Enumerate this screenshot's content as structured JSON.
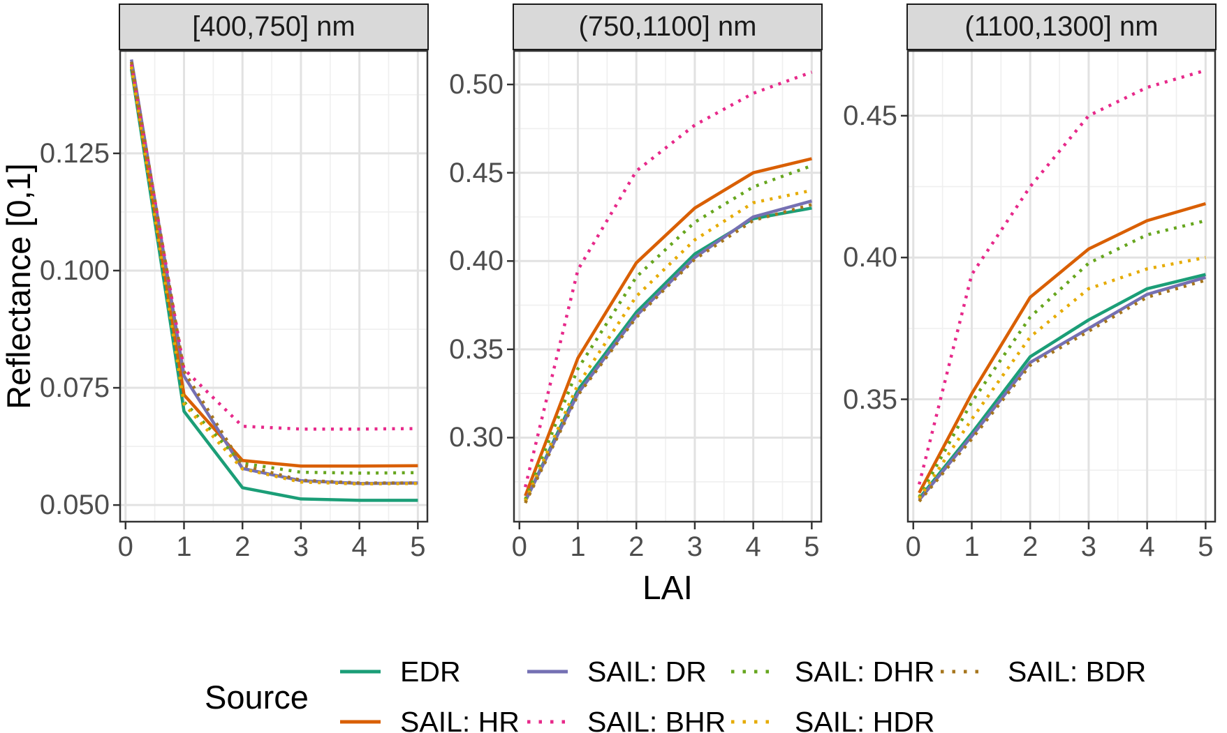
{
  "figure": {
    "x_axis_title": "LAI",
    "y_axis_title": "Reflectance [0,1]",
    "colors": {
      "strip_bg": "#d9d9d9",
      "panel_bg": "#ffffff",
      "panel_border": "#333333",
      "grid_major": "#e2e2e2",
      "grid_minor": "#efefef",
      "tick_mark": "#333333",
      "tick_label": "#4d4d4d",
      "text": "#000000"
    }
  },
  "legend": {
    "title": "Source",
    "entries": [
      {
        "label": "EDR",
        "color": "#1B9E77",
        "style": "solid"
      },
      {
        "label": "SAIL: HR",
        "color": "#D95F02",
        "style": "solid"
      },
      {
        "label": "SAIL: DR",
        "color": "#7570B3",
        "style": "solid"
      },
      {
        "label": "SAIL: BHR",
        "color": "#E7298A",
        "style": "dotted"
      },
      {
        "label": "SAIL: DHR",
        "color": "#66A61E",
        "style": "dotted"
      },
      {
        "label": "SAIL: HDR",
        "color": "#E6AB02",
        "style": "dotted"
      },
      {
        "label": "SAIL: BDR",
        "color": "#A6761D",
        "style": "dotted"
      }
    ],
    "columns": [
      [
        0,
        1
      ],
      [
        2,
        3
      ],
      [
        4,
        5
      ],
      [
        6
      ]
    ]
  },
  "chart_data": {
    "type": "line",
    "xlabel": "LAI",
    "ylabel": "Reflectance [0,1]",
    "x": [
      0.1,
      1,
      2,
      3,
      4,
      5
    ],
    "xlim": [
      -0.105,
      5.175
    ],
    "xticks": [
      0,
      1,
      2,
      3,
      4,
      5
    ],
    "xtick_labels": [
      "0",
      "1",
      "2",
      "3",
      "4",
      "5"
    ],
    "xticks_minor": [
      0.5,
      1.5,
      2.5,
      3.5,
      4.5
    ],
    "grid": true,
    "legend_position": "bottom",
    "series_names": [
      "EDR",
      "SAIL: HR",
      "SAIL: DR",
      "SAIL: BHR",
      "SAIL: DHR",
      "SAIL: HDR",
      "SAIL: BDR"
    ],
    "panels": [
      {
        "title": "[400,750] nm",
        "ylim": [
          0.0463,
          0.147
        ],
        "yticks": [
          0.125,
          0.1,
          0.075,
          0.05
        ],
        "ytick_labels": [
          "0.125",
          "0.100",
          "0.075",
          "0.050"
        ],
        "yticks_minor": [
          0.1375,
          0.1125,
          0.0875,
          0.0625
        ],
        "series": [
          [
            0.143,
            0.07,
            0.0537,
            0.0513,
            0.051,
            0.051
          ],
          [
            0.144,
            0.0735,
            0.0595,
            0.0583,
            0.0583,
            0.0584
          ],
          [
            0.145,
            0.0775,
            0.0578,
            0.0552,
            0.0546,
            0.0547
          ],
          [
            0.144,
            0.079,
            0.0668,
            0.0662,
            0.0662,
            0.0663
          ],
          [
            0.1435,
            0.072,
            0.0589,
            0.057,
            0.0568,
            0.0569
          ],
          [
            0.1435,
            0.0715,
            0.0577,
            0.0549,
            0.0545,
            0.0546
          ],
          [
            0.1445,
            0.0785,
            0.0585,
            0.0553,
            0.0547,
            0.0547
          ]
        ]
      },
      {
        "title": "(750,1100] nm",
        "ylim": [
          0.252,
          0.5194
        ],
        "yticks": [
          0.5,
          0.45,
          0.4,
          0.35,
          0.3
        ],
        "ytick_labels": [
          "0.50",
          "0.45",
          "0.40",
          "0.35",
          "0.30"
        ],
        "yticks_minor": [
          0.475,
          0.425,
          0.375,
          0.325,
          0.275
        ],
        "series": [
          [
            0.264,
            0.327,
            0.371,
            0.404,
            0.424,
            0.43
          ],
          [
            0.267,
            0.345,
            0.399,
            0.43,
            0.45,
            0.458
          ],
          [
            0.264,
            0.325,
            0.369,
            0.402,
            0.425,
            0.434
          ],
          [
            0.272,
            0.395,
            0.451,
            0.477,
            0.495,
            0.507
          ],
          [
            0.265,
            0.339,
            0.391,
            0.422,
            0.442,
            0.454
          ],
          [
            0.264,
            0.33,
            0.38,
            0.412,
            0.433,
            0.44
          ],
          [
            0.263,
            0.324,
            0.368,
            0.401,
            0.423,
            0.432
          ]
        ]
      },
      {
        "title": "(1100,1300] nm",
        "ylim": [
          0.3066,
          0.4731
        ],
        "yticks": [
          0.45,
          0.4,
          0.35
        ],
        "ytick_labels": [
          "0.45",
          "0.40",
          "0.35"
        ],
        "yticks_minor": [
          0.425,
          0.375,
          0.325
        ],
        "series": [
          [
            0.315,
            0.338,
            0.365,
            0.378,
            0.389,
            0.394
          ],
          [
            0.317,
            0.352,
            0.386,
            0.403,
            0.413,
            0.419
          ],
          [
            0.3145,
            0.337,
            0.363,
            0.375,
            0.387,
            0.393
          ],
          [
            0.32,
            0.394,
            0.425,
            0.45,
            0.46,
            0.466
          ],
          [
            0.3155,
            0.349,
            0.379,
            0.398,
            0.408,
            0.413
          ],
          [
            0.315,
            0.343,
            0.372,
            0.389,
            0.396,
            0.4
          ],
          [
            0.314,
            0.336,
            0.362,
            0.374,
            0.386,
            0.392
          ]
        ]
      }
    ]
  }
}
